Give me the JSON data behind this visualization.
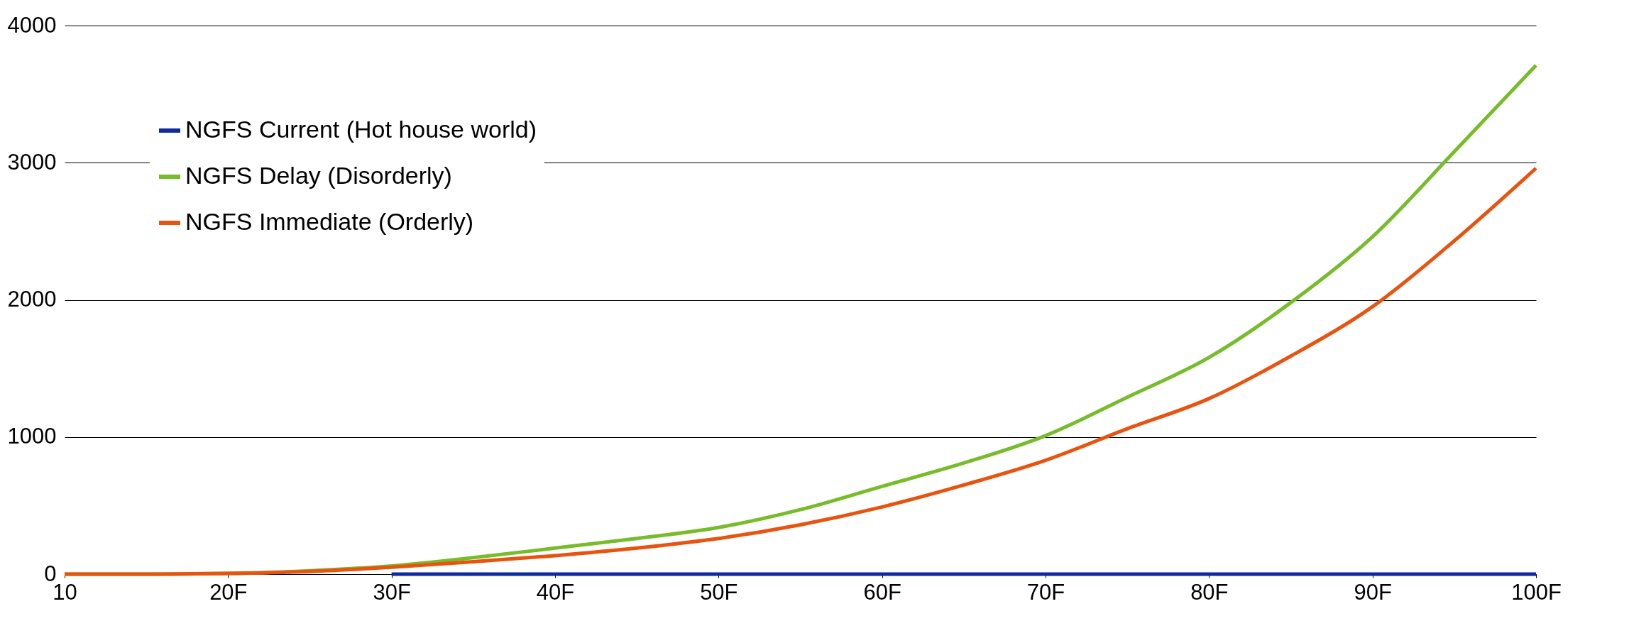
{
  "chart_data": {
    "type": "line",
    "xlim": [
      10,
      100
    ],
    "xticks": [
      10,
      {
        "value": 20,
        "label": "20F"
      },
      {
        "value": 30,
        "label": "30F"
      },
      {
        "value": 40,
        "label": "40F"
      },
      {
        "value": 50,
        "label": "50F"
      },
      {
        "value": 60,
        "label": "60F"
      },
      {
        "value": 70,
        "label": "70F"
      },
      {
        "value": 80,
        "label": "80F"
      },
      {
        "value": 90,
        "label": "90F"
      },
      {
        "value": 100,
        "label": "100F"
      }
    ],
    "ylim": [
      0,
      4000
    ],
    "yticks": [
      0,
      1000,
      2000,
      3000,
      4000
    ],
    "grid": "y",
    "legend": "top left",
    "marker": "none",
    "line_style": "solid",
    "series": [
      {
        "name": "NGFS Current (Hot house world)",
        "color": "#0d2b9e",
        "x": [
          30,
          40,
          50,
          60,
          70,
          80,
          90,
          100
        ],
        "values": [
          0,
          0,
          0,
          0,
          0,
          0,
          0,
          0
        ]
      },
      {
        "name": "NGFS Delay (Disorderly)",
        "color": "#77bc2b",
        "x": [
          10,
          15,
          20,
          25,
          30,
          35,
          40,
          45,
          50,
          55,
          60,
          65,
          70,
          75,
          80,
          85,
          90,
          95,
          100
        ],
        "values": [
          0,
          0,
          5,
          25,
          60,
          120,
          190,
          260,
          340,
          470,
          640,
          810,
          1010,
          1290,
          1580,
          1980,
          2460,
          3080,
          3710
        ]
      },
      {
        "name": "NGFS Immediate (Orderly)",
        "color": "#e8540f",
        "x": [
          10,
          15,
          20,
          25,
          30,
          35,
          40,
          45,
          50,
          55,
          60,
          65,
          70,
          75,
          80,
          85,
          90,
          95,
          100
        ],
        "values": [
          0,
          0,
          5,
          20,
          50,
          90,
          135,
          190,
          260,
          360,
          490,
          650,
          830,
          1060,
          1280,
          1590,
          1950,
          2430,
          2960
        ]
      }
    ]
  }
}
